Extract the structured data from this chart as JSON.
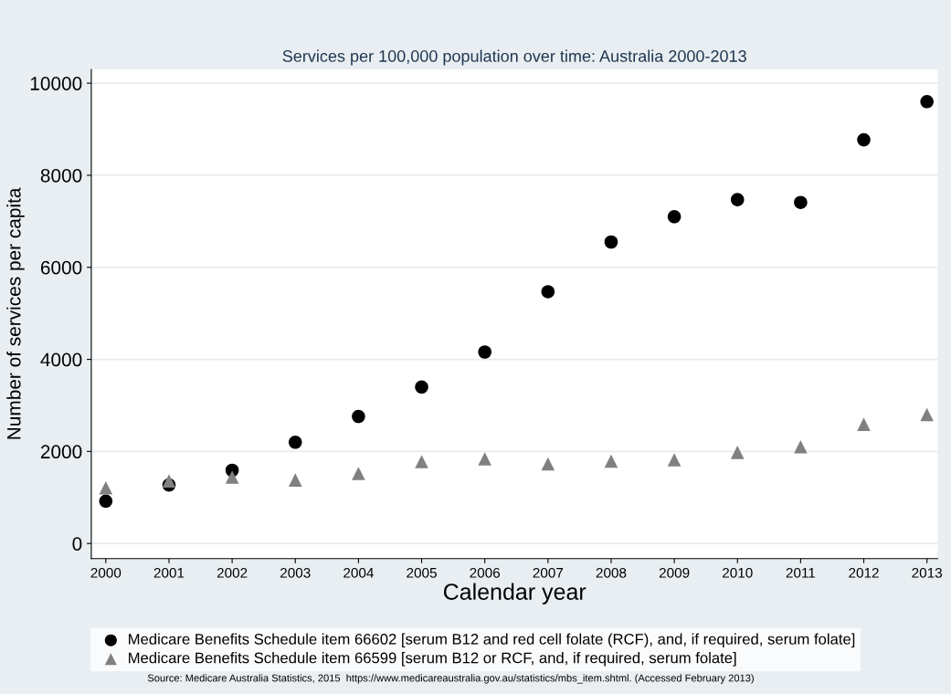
{
  "chart_data": {
    "type": "scatter",
    "title": "Services per 100,000 population over time: Australia 2000-2013",
    "xlabel": "Calendar year",
    "ylabel": "Number of services per capita",
    "x": [
      2000,
      2001,
      2002,
      2003,
      2004,
      2005,
      2006,
      2007,
      2008,
      2009,
      2010,
      2011,
      2012,
      2013
    ],
    "series": [
      {
        "name": "Medicare Benefits Schedule item 66602 [serum B12 and red cell folate (RCF), and, if required, serum folate]",
        "color": "#000000",
        "marker": "circle",
        "values": [
          920,
          1270,
          1590,
          2200,
          2760,
          3400,
          4160,
          5470,
          6550,
          7100,
          7470,
          7410,
          8770,
          9600
        ]
      },
      {
        "name": "Medicare Benefits Schedule item 66599 [serum B12 or RCF, and, if required, serum folate]",
        "color": "#808080",
        "marker": "triangle",
        "values": [
          1210,
          1360,
          1440,
          1380,
          1520,
          1780,
          1840,
          1730,
          1790,
          1820,
          1980,
          2100,
          2590,
          2800
        ]
      }
    ],
    "xlim": [
      1999.77,
      2013.17
    ],
    "xticks": [
      2000,
      2001,
      2002,
      2003,
      2004,
      2005,
      2006,
      2007,
      2008,
      2009,
      2010,
      2011,
      2012,
      2013
    ],
    "ylim": [
      -330,
      10300
    ],
    "yticks": [
      0,
      2000,
      4000,
      6000,
      8000,
      10000
    ],
    "grid": "y",
    "legend": "bottom",
    "annotations": [
      "Source: Medicare Australia Statistics, 2015  https://www.medicareaustralia.gov.au/statistics/mbs_item.shtml. (Accessed February 2013)"
    ]
  }
}
